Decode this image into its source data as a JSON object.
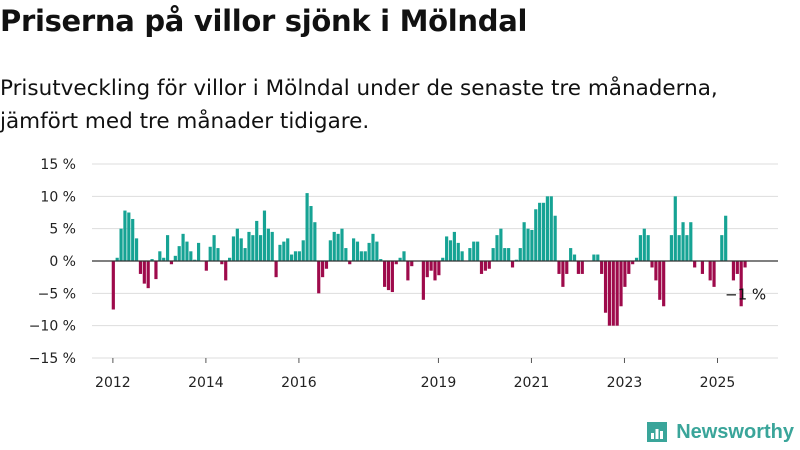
{
  "header": {
    "title": "Priserna på villor sjönk i Mölndal",
    "subtitle": "Prisutveckling för villor i Mölndal under de senaste tre månaderna, jämfört med tre månader tidigare."
  },
  "brand": {
    "name": "Newsworthy",
    "color": "#3aa59a",
    "icon": "bar-chart-logo-icon"
  },
  "colors": {
    "positive": "#16a394",
    "negative": "#9e0a4b",
    "grid": "#dddddd",
    "zero": "#333333"
  },
  "chart_data": {
    "type": "bar",
    "title": "Priserna på villor sjönk i Mölndal",
    "ylabel": "",
    "xlabel": "",
    "ylim": [
      -15,
      15
    ],
    "yticks": [
      15,
      10,
      5,
      0,
      -5,
      -10,
      -15
    ],
    "ytick_labels": [
      "15 %",
      "10 %",
      "5 %",
      "0 %",
      "−5 %",
      "−10 %",
      "−15 %"
    ],
    "xlim": [
      "2011-08",
      "2026-05"
    ],
    "xticks": [
      "2012-01",
      "2014-01",
      "2016-01",
      "2019-01",
      "2021-01",
      "2023-01",
      "2025-01"
    ],
    "xtick_labels": [
      "2012",
      "2014",
      "2016",
      "2019",
      "2021",
      "2023",
      "2025"
    ],
    "grid": true,
    "annotation": {
      "label": "−1 %",
      "x": "2025-08",
      "value": -1
    },
    "bars": [
      {
        "x": "2012-01",
        "value": -7.5
      },
      {
        "x": "2012-02",
        "value": 0.5
      },
      {
        "x": "2012-03",
        "value": 5
      },
      {
        "x": "2012-04",
        "value": 7.8
      },
      {
        "x": "2012-05",
        "value": 7.5
      },
      {
        "x": "2012-06",
        "value": 6.5
      },
      {
        "x": "2012-07",
        "value": 3.5
      },
      {
        "x": "2012-08",
        "value": -2
      },
      {
        "x": "2012-09",
        "value": -3.5
      },
      {
        "x": "2012-10",
        "value": -4.2
      },
      {
        "x": "2012-11",
        "value": 0.3
      },
      {
        "x": "2012-12",
        "value": -2.8
      },
      {
        "x": "2013-01",
        "value": 1.5
      },
      {
        "x": "2013-02",
        "value": 0.5
      },
      {
        "x": "2013-03",
        "value": 4
      },
      {
        "x": "2013-04",
        "value": -0.5
      },
      {
        "x": "2013-05",
        "value": 0.8
      },
      {
        "x": "2013-06",
        "value": 2.3
      },
      {
        "x": "2013-07",
        "value": 4.2
      },
      {
        "x": "2013-08",
        "value": 3
      },
      {
        "x": "2013-09",
        "value": 1.5
      },
      {
        "x": "2013-10",
        "value": 0.2
      },
      {
        "x": "2013-11",
        "value": 2.8
      },
      {
        "x": "2013-12",
        "value": 0
      },
      {
        "x": "2014-01",
        "value": -1.5
      },
      {
        "x": "2014-02",
        "value": 2.2
      },
      {
        "x": "2014-03",
        "value": 4
      },
      {
        "x": "2014-04",
        "value": 2
      },
      {
        "x": "2014-05",
        "value": -0.5
      },
      {
        "x": "2014-06",
        "value": -3
      },
      {
        "x": "2014-07",
        "value": 0.5
      },
      {
        "x": "2014-08",
        "value": 3.8
      },
      {
        "x": "2014-09",
        "value": 5
      },
      {
        "x": "2014-10",
        "value": 3.5
      },
      {
        "x": "2014-11",
        "value": 2
      },
      {
        "x": "2014-12",
        "value": 4.5
      },
      {
        "x": "2015-01",
        "value": 4
      },
      {
        "x": "2015-02",
        "value": 6.2
      },
      {
        "x": "2015-03",
        "value": 4
      },
      {
        "x": "2015-04",
        "value": 7.8
      },
      {
        "x": "2015-05",
        "value": 5
      },
      {
        "x": "2015-06",
        "value": 4.5
      },
      {
        "x": "2015-07",
        "value": -2.5
      },
      {
        "x": "2015-08",
        "value": 2.5
      },
      {
        "x": "2015-09",
        "value": 3
      },
      {
        "x": "2015-10",
        "value": 3.5
      },
      {
        "x": "2015-11",
        "value": 1
      },
      {
        "x": "2015-12",
        "value": 1.5
      },
      {
        "x": "2016-01",
        "value": 1.5
      },
      {
        "x": "2016-02",
        "value": 3.2
      },
      {
        "x": "2016-03",
        "value": 10.5
      },
      {
        "x": "2016-04",
        "value": 8.5
      },
      {
        "x": "2016-05",
        "value": 6
      },
      {
        "x": "2016-06",
        "value": -5
      },
      {
        "x": "2016-07",
        "value": -2.5
      },
      {
        "x": "2016-08",
        "value": -1.2
      },
      {
        "x": "2016-09",
        "value": 3.2
      },
      {
        "x": "2016-10",
        "value": 4.5
      },
      {
        "x": "2016-11",
        "value": 4.2
      },
      {
        "x": "2016-12",
        "value": 5
      },
      {
        "x": "2017-01",
        "value": 2
      },
      {
        "x": "2017-02",
        "value": -0.5
      },
      {
        "x": "2017-03",
        "value": 3.5
      },
      {
        "x": "2017-04",
        "value": 3
      },
      {
        "x": "2017-05",
        "value": 1.5
      },
      {
        "x": "2017-06",
        "value": 1.5
      },
      {
        "x": "2017-07",
        "value": 2.8
      },
      {
        "x": "2017-08",
        "value": 4.2
      },
      {
        "x": "2017-09",
        "value": 3
      },
      {
        "x": "2017-10",
        "value": 0.3
      },
      {
        "x": "2017-11",
        "value": -4
      },
      {
        "x": "2017-12",
        "value": -4.5
      },
      {
        "x": "2018-01",
        "value": -4.8
      },
      {
        "x": "2018-02",
        "value": -0.5
      },
      {
        "x": "2018-03",
        "value": 0.5
      },
      {
        "x": "2018-04",
        "value": 1.5
      },
      {
        "x": "2018-05",
        "value": -3
      },
      {
        "x": "2018-06",
        "value": -0.8
      },
      {
        "x": "2018-07",
        "value": 0
      },
      {
        "x": "2018-08",
        "value": 0
      },
      {
        "x": "2018-09",
        "value": -6
      },
      {
        "x": "2018-10",
        "value": -2.5
      },
      {
        "x": "2018-11",
        "value": -1.5
      },
      {
        "x": "2018-12",
        "value": -3
      },
      {
        "x": "2019-01",
        "value": -2.2
      },
      {
        "x": "2019-02",
        "value": 0.5
      },
      {
        "x": "2019-03",
        "value": 3.8
      },
      {
        "x": "2019-04",
        "value": 3.2
      },
      {
        "x": "2019-05",
        "value": 4.5
      },
      {
        "x": "2019-06",
        "value": 2.8
      },
      {
        "x": "2019-07",
        "value": 1.5
      },
      {
        "x": "2019-08",
        "value": 0
      },
      {
        "x": "2019-09",
        "value": 2
      },
      {
        "x": "2019-10",
        "value": 3
      },
      {
        "x": "2019-11",
        "value": 3
      },
      {
        "x": "2019-12",
        "value": -2
      },
      {
        "x": "2020-01",
        "value": -1.5
      },
      {
        "x": "2020-02",
        "value": -1.2
      },
      {
        "x": "2020-03",
        "value": 2
      },
      {
        "x": "2020-04",
        "value": 4
      },
      {
        "x": "2020-05",
        "value": 5
      },
      {
        "x": "2020-06",
        "value": 2
      },
      {
        "x": "2020-07",
        "value": 2
      },
      {
        "x": "2020-08",
        "value": -1
      },
      {
        "x": "2020-09",
        "value": 0.2
      },
      {
        "x": "2020-10",
        "value": 2
      },
      {
        "x": "2020-11",
        "value": 6
      },
      {
        "x": "2020-12",
        "value": 5
      },
      {
        "x": "2021-01",
        "value": 4.8
      },
      {
        "x": "2021-02",
        "value": 8
      },
      {
        "x": "2021-03",
        "value": 9
      },
      {
        "x": "2021-04",
        "value": 9
      },
      {
        "x": "2021-05",
        "value": 10
      },
      {
        "x": "2021-06",
        "value": 10
      },
      {
        "x": "2021-07",
        "value": 7
      },
      {
        "x": "2021-08",
        "value": -2
      },
      {
        "x": "2021-09",
        "value": -4
      },
      {
        "x": "2021-10",
        "value": -2
      },
      {
        "x": "2021-11",
        "value": 2
      },
      {
        "x": "2021-12",
        "value": 1
      },
      {
        "x": "2022-01",
        "value": -2
      },
      {
        "x": "2022-02",
        "value": -2
      },
      {
        "x": "2022-03",
        "value": 0
      },
      {
        "x": "2022-04",
        "value": 0
      },
      {
        "x": "2022-05",
        "value": 1
      },
      {
        "x": "2022-06",
        "value": 1
      },
      {
        "x": "2022-07",
        "value": -2
      },
      {
        "x": "2022-08",
        "value": -8
      },
      {
        "x": "2022-09",
        "value": -10
      },
      {
        "x": "2022-10",
        "value": -10
      },
      {
        "x": "2022-11",
        "value": -10
      },
      {
        "x": "2022-12",
        "value": -7
      },
      {
        "x": "2023-01",
        "value": -4
      },
      {
        "x": "2023-02",
        "value": -2
      },
      {
        "x": "2023-03",
        "value": -0.5
      },
      {
        "x": "2023-04",
        "value": 0.5
      },
      {
        "x": "2023-05",
        "value": 4
      },
      {
        "x": "2023-06",
        "value": 5
      },
      {
        "x": "2023-07",
        "value": 4
      },
      {
        "x": "2023-08",
        "value": -1
      },
      {
        "x": "2023-09",
        "value": -3
      },
      {
        "x": "2023-10",
        "value": -6
      },
      {
        "x": "2023-11",
        "value": -7
      },
      {
        "x": "2023-12",
        "value": 0
      },
      {
        "x": "2024-01",
        "value": 4
      },
      {
        "x": "2024-02",
        "value": 10
      },
      {
        "x": "2024-03",
        "value": 4
      },
      {
        "x": "2024-04",
        "value": 6
      },
      {
        "x": "2024-05",
        "value": 4
      },
      {
        "x": "2024-06",
        "value": 6
      },
      {
        "x": "2024-07",
        "value": -1
      },
      {
        "x": "2024-08",
        "value": 0
      },
      {
        "x": "2024-09",
        "value": -2
      },
      {
        "x": "2024-10",
        "value": 0
      },
      {
        "x": "2024-11",
        "value": -3
      },
      {
        "x": "2024-12",
        "value": -4
      },
      {
        "x": "2025-01",
        "value": 0
      },
      {
        "x": "2025-02",
        "value": 4
      },
      {
        "x": "2025-03",
        "value": 7
      },
      {
        "x": "2025-04",
        "value": 0
      },
      {
        "x": "2025-05",
        "value": -3
      },
      {
        "x": "2025-06",
        "value": -2
      },
      {
        "x": "2025-07",
        "value": -7
      },
      {
        "x": "2025-08",
        "value": -1
      }
    ]
  }
}
